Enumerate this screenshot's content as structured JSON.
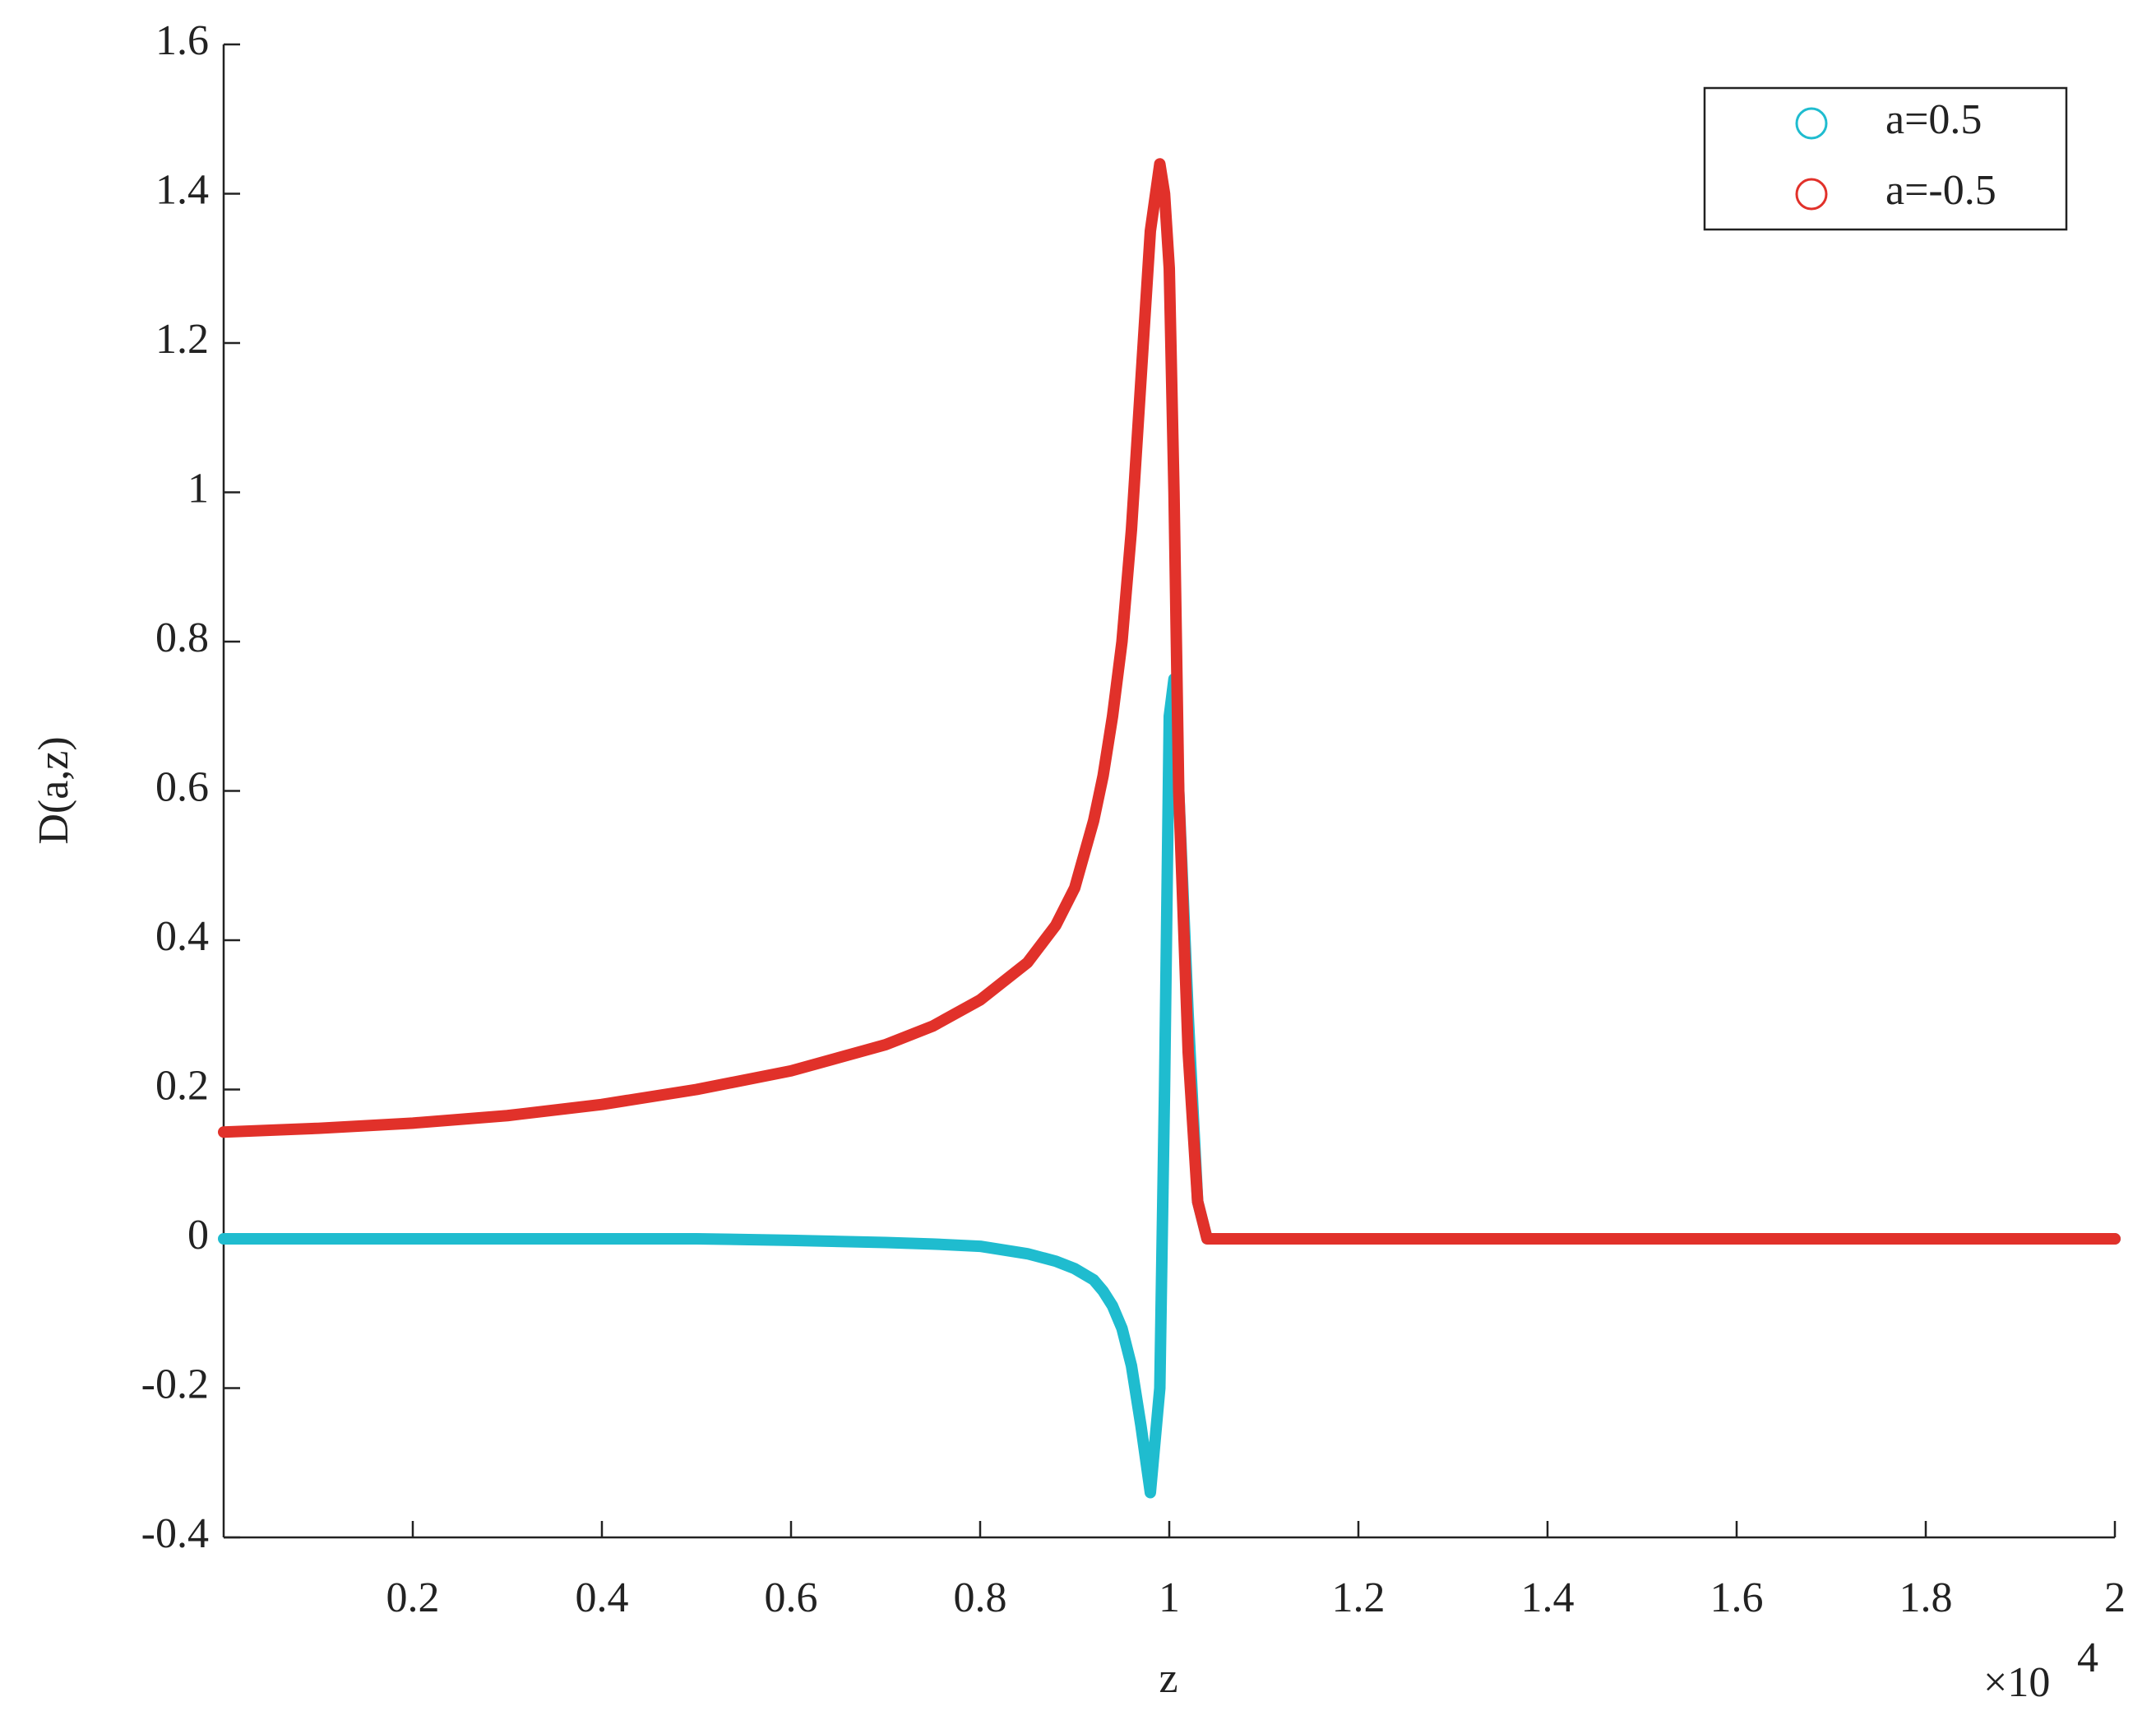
{
  "chart_data": {
    "type": "line",
    "marker": "o",
    "x_label": "z",
    "y_label": "D(a,z)",
    "x_scale_label": "×10",
    "x_scale_exponent": "4",
    "x": [
      0,
      0.1,
      0.2,
      0.3,
      0.4,
      0.5,
      0.6,
      0.7,
      0.75,
      0.8,
      0.85,
      0.88,
      0.9,
      0.92,
      0.93,
      0.94,
      0.95,
      0.96,
      0.97,
      0.98,
      0.99,
      0.995,
      1.0,
      1.005,
      1.01,
      1.02,
      1.03,
      1.04,
      1.1,
      1.5,
      2.0
    ],
    "series": [
      {
        "name": "a=0.5",
        "color": "#1fbccf",
        "values": [
          0,
          0,
          0,
          0,
          0,
          0,
          -0.002,
          -0.005,
          -0.007,
          -0.01,
          -0.02,
          -0.03,
          -0.04,
          -0.055,
          -0.07,
          -0.09,
          -0.12,
          -0.17,
          -0.25,
          -0.34,
          -0.2,
          0.2,
          0.7,
          0.75,
          0.6,
          0.3,
          0.05,
          0,
          0,
          0,
          0
        ]
      },
      {
        "name": "a=-0.5",
        "color": "#e1312a",
        "values": [
          0.143,
          0.148,
          0.155,
          0.165,
          0.18,
          0.2,
          0.225,
          0.26,
          0.285,
          0.32,
          0.37,
          0.42,
          0.47,
          0.56,
          0.62,
          0.7,
          0.8,
          0.95,
          1.15,
          1.35,
          1.44,
          1.4,
          1.3,
          1.0,
          0.6,
          0.25,
          0.05,
          0,
          0,
          0,
          0
        ]
      }
    ],
    "xlim": [
      0,
      2
    ],
    "xticks": [
      0.2,
      0.4,
      0.6,
      0.8,
      1,
      1.2,
      1.4,
      1.6,
      1.8,
      2
    ],
    "ylim": [
      -0.4,
      1.6
    ],
    "yticks": [
      -0.4,
      -0.2,
      0,
      0.2,
      0.4,
      0.6,
      0.8,
      1,
      1.2,
      1.4,
      1.6
    ],
    "grid": false,
    "legend": "upper right"
  }
}
